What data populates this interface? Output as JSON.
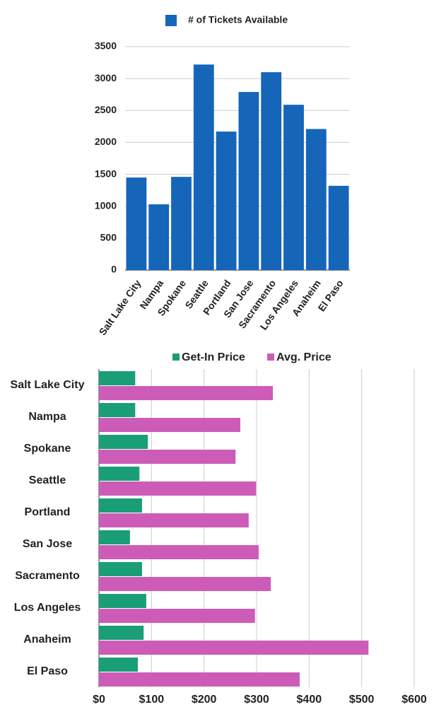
{
  "chart_data": [
    {
      "type": "bar",
      "series": [
        {
          "name": "# of Tickets Available",
          "color": "#1565b8",
          "values": [
            1450,
            1030,
            1460,
            3220,
            2170,
            2790,
            3100,
            2590,
            2210,
            1320
          ]
        }
      ],
      "categories": [
        "Salt Lake City",
        "Nampa",
        "Spokane",
        "Seattle",
        "Portland",
        "San Jose",
        "Sacramento",
        "Los Angeles",
        "Anaheim",
        "El Paso"
      ],
      "ylim": [
        0,
        3500
      ],
      "yticks": [
        0,
        500,
        1000,
        1500,
        2000,
        2500,
        3000,
        3500
      ],
      "grid": true,
      "legend": "top"
    },
    {
      "type": "barh",
      "series": [
        {
          "name": "Get-In Price",
          "color": "#1a9e77",
          "values": [
            69,
            69,
            93,
            77,
            82,
            59,
            82,
            90,
            85,
            74
          ]
        },
        {
          "name": "Avg. Price",
          "color": "#cc5cb8",
          "values": [
            331,
            269,
            260,
            299,
            285,
            304,
            327,
            297,
            513,
            382
          ]
        }
      ],
      "categories": [
        "Salt Lake City",
        "Nampa",
        "Spokane",
        "Seattle",
        "Portland",
        "San Jose",
        "Sacramento",
        "Los Angeles",
        "Anaheim",
        "El Paso"
      ],
      "xlim": [
        0,
        600
      ],
      "xticks": [
        {
          "value": 0,
          "label": "$0"
        },
        {
          "value": 100,
          "label": "$100"
        },
        {
          "value": 200,
          "label": "$200"
        },
        {
          "value": 300,
          "label": "$300"
        },
        {
          "value": 400,
          "label": "$400"
        },
        {
          "value": 500,
          "label": "$500"
        },
        {
          "value": 600,
          "label": "$600"
        }
      ],
      "grid": true,
      "legend": "top"
    }
  ]
}
